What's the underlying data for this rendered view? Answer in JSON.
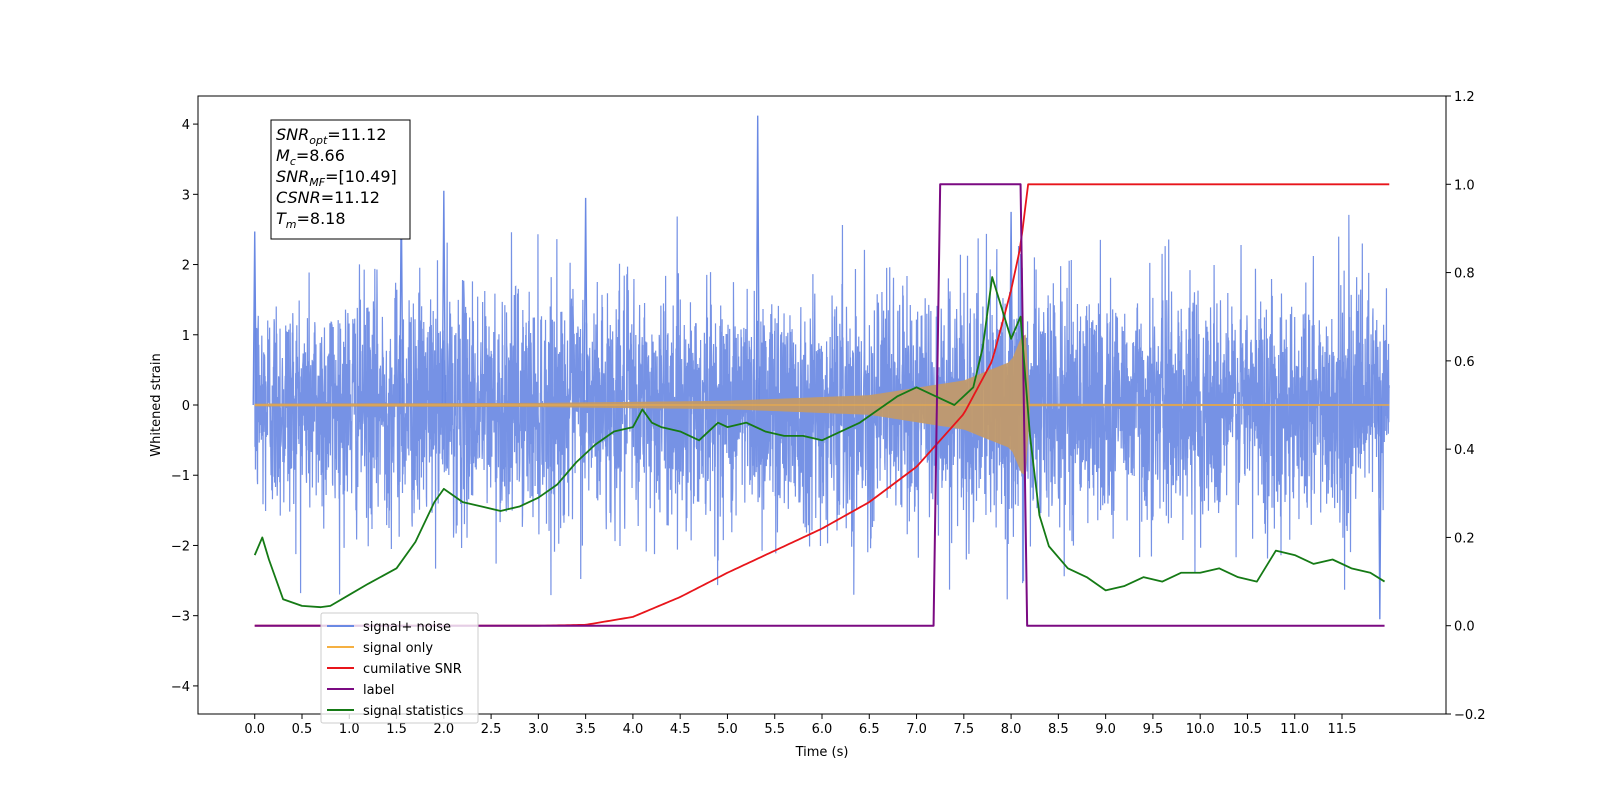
{
  "chart_data": {
    "type": "line",
    "title": "",
    "xlabel": "Time (s)",
    "ylabel": "Whitened strain",
    "y2label": "",
    "xlim": [
      -0.6,
      12.6
    ],
    "ylim": [
      -4.4,
      4.4
    ],
    "y2lim": [
      -0.2,
      1.2
    ],
    "x_ticks": [
      0.0,
      0.5,
      1.0,
      1.5,
      2.0,
      2.5,
      3.0,
      3.5,
      4.0,
      4.5,
      5.0,
      5.5,
      6.0,
      6.5,
      7.0,
      7.5,
      8.0,
      8.5,
      9.0,
      9.5,
      10.0,
      10.5,
      11.0,
      11.5
    ],
    "x_tick_labels": [
      "0.0",
      "0.5",
      "1.0",
      "1.5",
      "2.0",
      "2.5",
      "3.0",
      "3.5",
      "4.0",
      "4.5",
      "5.0",
      "5.5",
      "6.0",
      "6.5",
      "7.0",
      "7.5",
      "8.0",
      "8.5",
      "9.0",
      "9.5",
      "10.0",
      "10.5",
      "11.0",
      "11.5"
    ],
    "y_ticks": [
      -4,
      -3,
      -2,
      -1,
      0,
      1,
      2,
      3,
      4
    ],
    "y_tick_labels": [
      "−4",
      "−3",
      "−2",
      "−1",
      "0",
      "1",
      "2",
      "3",
      "4"
    ],
    "y2_ticks": [
      -0.2,
      0.0,
      0.2,
      0.4,
      0.6,
      0.8,
      1.0,
      1.2
    ],
    "y2_tick_labels": [
      "−0.2",
      "0.0",
      "0.2",
      "0.4",
      "0.6",
      "0.8",
      "1.0",
      "1.2"
    ],
    "grid": false,
    "legend_position": "bottom-left",
    "annotation": {
      "lines": [
        {
          "base": "SNR",
          "sub": "opt",
          "value": "=11.12"
        },
        {
          "base": "M",
          "sub": "c",
          "value": "=8.66"
        },
        {
          "base": "SNR",
          "sub": "MF",
          "value": "=[10.49]"
        },
        {
          "base": "CSNR",
          "sub": "",
          "value": "=11.12"
        },
        {
          "base": "T",
          "sub": "m",
          "value": "=8.18"
        }
      ]
    },
    "series": [
      {
        "name": "signal+ noise",
        "axis": "left",
        "color": "#6a89e3",
        "description": "noisy whitened strain between about -3 and +4.1, std ~0.9, peak 4.1 at t=5.32",
        "x_range": [
          0.0,
          12.0
        ],
        "notable_peaks": [
          [
            0.0,
            2.47
          ],
          [
            1.55,
            3.05
          ],
          [
            2.0,
            3.05
          ],
          [
            3.5,
            2.95
          ],
          [
            5.32,
            4.12
          ],
          [
            8.0,
            2.75
          ],
          [
            11.9,
            -3.05
          ]
        ]
      },
      {
        "name": "signal only",
        "axis": "left",
        "color": "#f5b041",
        "description": "chirp signal growing in amplitude until merger at ~8.15 s, amplitude ~1.1 at peak",
        "envelope": {
          "x": [
            0.0,
            3.0,
            5.0,
            6.5,
            7.5,
            8.0,
            8.15,
            8.2,
            12.0
          ],
          "amp": [
            0.02,
            0.03,
            0.06,
            0.14,
            0.35,
            0.62,
            1.1,
            0.02,
            0.01
          ]
        }
      },
      {
        "name": "cumilative SNR",
        "axis": "right",
        "color": "#e8151b",
        "x": [
          0.0,
          3.0,
          3.5,
          4.0,
          4.5,
          5.0,
          5.5,
          6.0,
          6.5,
          7.0,
          7.5,
          7.8,
          8.0,
          8.1,
          8.18,
          12.0
        ],
        "y": [
          0.0,
          0.0,
          0.002,
          0.02,
          0.065,
          0.12,
          0.17,
          0.22,
          0.28,
          0.36,
          0.48,
          0.6,
          0.76,
          0.86,
          1.0,
          1.0
        ]
      },
      {
        "name": "label",
        "axis": "right",
        "color": "#7b0a82",
        "x": [
          0.0,
          7.18,
          7.25,
          8.1,
          8.17,
          11.95
        ],
        "y": [
          0.0,
          0.0,
          1.0,
          1.0,
          0.0,
          0.0
        ]
      },
      {
        "name": "signal statistics",
        "axis": "right",
        "color": "#157a15",
        "x": [
          0.0,
          0.08,
          0.15,
          0.3,
          0.5,
          0.7,
          0.8,
          1.0,
          1.2,
          1.5,
          1.7,
          1.9,
          2.0,
          2.2,
          2.4,
          2.6,
          2.8,
          3.0,
          3.2,
          3.4,
          3.6,
          3.8,
          4.0,
          4.1,
          4.2,
          4.3,
          4.5,
          4.7,
          4.9,
          5.0,
          5.2,
          5.4,
          5.6,
          5.8,
          6.0,
          6.2,
          6.4,
          6.6,
          6.8,
          7.0,
          7.2,
          7.4,
          7.6,
          7.7,
          7.8,
          7.9,
          8.0,
          8.1,
          8.2,
          8.3,
          8.4,
          8.6,
          8.8,
          9.0,
          9.2,
          9.4,
          9.6,
          9.8,
          10.0,
          10.2,
          10.4,
          10.6,
          10.8,
          11.0,
          11.2,
          11.4,
          11.6,
          11.8,
          11.95
        ],
        "y": [
          0.16,
          0.2,
          0.15,
          0.06,
          0.045,
          0.042,
          0.045,
          0.07,
          0.095,
          0.13,
          0.19,
          0.28,
          0.31,
          0.28,
          0.27,
          0.26,
          0.27,
          0.29,
          0.32,
          0.37,
          0.41,
          0.44,
          0.45,
          0.49,
          0.46,
          0.45,
          0.44,
          0.42,
          0.46,
          0.45,
          0.46,
          0.44,
          0.43,
          0.43,
          0.42,
          0.44,
          0.46,
          0.49,
          0.52,
          0.54,
          0.52,
          0.5,
          0.54,
          0.63,
          0.79,
          0.72,
          0.65,
          0.7,
          0.43,
          0.25,
          0.18,
          0.13,
          0.11,
          0.08,
          0.09,
          0.11,
          0.1,
          0.12,
          0.12,
          0.13,
          0.11,
          0.1,
          0.17,
          0.16,
          0.14,
          0.15,
          0.13,
          0.12,
          0.1
        ]
      }
    ]
  }
}
